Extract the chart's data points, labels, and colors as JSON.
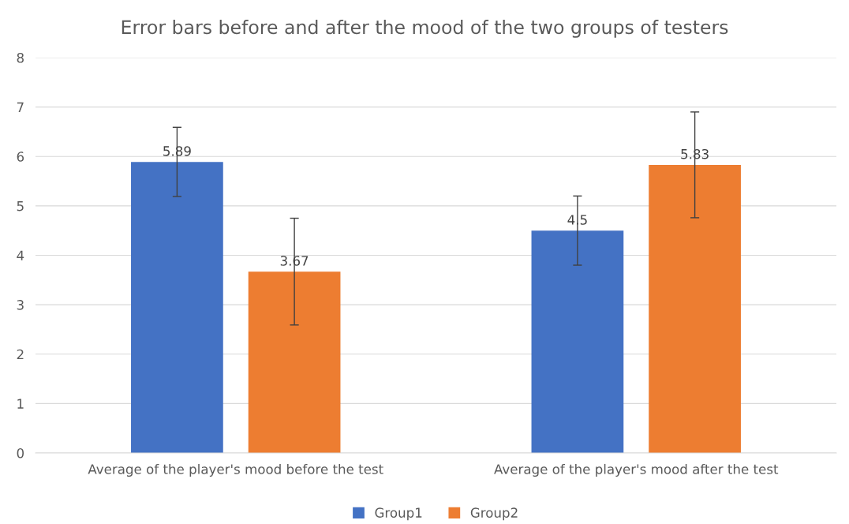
{
  "chart_data": {
    "type": "bar",
    "title": "Error bars before and after the mood of the two groups of testers",
    "categories": [
      "Average of the player's mood before the test",
      "Average of the player's mood after the test"
    ],
    "series": [
      {
        "name": "Group1",
        "color": "#4472c4",
        "values": [
          5.89,
          4.5
        ],
        "errors": [
          0.7,
          0.7
        ]
      },
      {
        "name": "Group2",
        "color": "#ed7d31",
        "values": [
          3.67,
          5.83
        ],
        "errors": [
          1.08,
          1.07
        ]
      }
    ],
    "ylim": [
      0,
      8
    ],
    "yticks": [
      0,
      1,
      2,
      3,
      4,
      5,
      6,
      7,
      8
    ],
    "grid": "y",
    "legend": "bottom",
    "data_labels": true
  }
}
